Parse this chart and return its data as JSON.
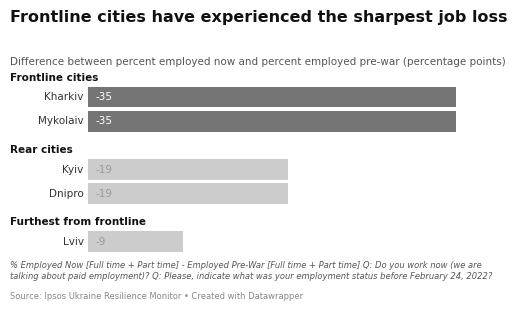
{
  "title": "Frontline cities have experienced the sharpest job loss",
  "subtitle": "Difference between percent employed now and percent employed pre-war (percentage points)",
  "footnote": "% Employed Now [Full time + Part time] - Employed Pre-War [Full time + Part time] Q: Do you work now (we are\ntalking about paid employment)? Q: Please, indicate what was your employment status before February 24, 2022?",
  "source": "Source: Ipsos Ukraine Resilience Monitor • Created with Datawrapper",
  "categories": [
    {
      "label": "Kharkiv",
      "value": -35,
      "group": "Frontline cities",
      "color": "#757575"
    },
    {
      "label": "Mykolaiv",
      "value": -35,
      "group": "Frontline cities",
      "color": "#757575"
    },
    {
      "label": "Kyiv",
      "value": -19,
      "group": "Rear cities",
      "color": "#cccccc"
    },
    {
      "label": "Dnipro",
      "value": -19,
      "group": "Rear cities",
      "color": "#cccccc"
    },
    {
      "label": "Lviv",
      "value": -9,
      "group": "Furthest from frontline",
      "color": "#cccccc"
    }
  ],
  "max_value": -35,
  "background_color": "#ffffff",
  "title_fontsize": 11.5,
  "subtitle_fontsize": 7.5,
  "label_fontsize": 7.5,
  "group_fontsize": 7.5,
  "footnote_fontsize": 6.0,
  "source_fontsize": 6.0,
  "value_color_dark": "#ffffff",
  "value_color_light": "#999999",
  "city_label_color": "#333333",
  "group_label_color": "#111111"
}
